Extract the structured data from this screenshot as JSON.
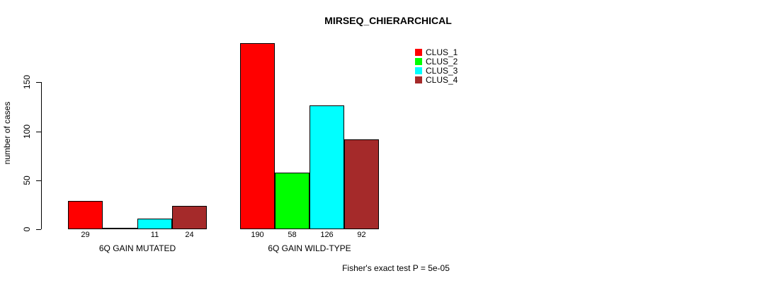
{
  "chart_data": {
    "type": "bar",
    "title": "MIRSEQ_CHIERARCHICAL",
    "xlabel": "",
    "ylabel": "number of cases",
    "ylim": [
      0,
      190
    ],
    "yticks": [
      0,
      50,
      100,
      150
    ],
    "grid": false,
    "legend_position": "top-right-inside",
    "categories": [
      "6Q GAIN MUTATED",
      "6Q GAIN WILD-TYPE"
    ],
    "series": [
      {
        "name": "CLUS_1",
        "color": "#FF0000",
        "values": [
          29,
          190
        ]
      },
      {
        "name": "CLUS_2",
        "color": "#00FF00",
        "values": [
          0,
          58
        ]
      },
      {
        "name": "CLUS_3",
        "color": "#00FFFF",
        "values": [
          11,
          126
        ]
      },
      {
        "name": "CLUS_4",
        "color": "#A52A2A",
        "values": [
          24,
          92
        ]
      }
    ],
    "bar_value_labels": [
      [
        "29",
        "",
        "11",
        "24"
      ],
      [
        "190",
        "58",
        "126",
        "92"
      ]
    ],
    "annotation": "Fisher's exact test P = 5e-05",
    "colors": {
      "axis": "#000000",
      "text": "#000000",
      "background": "#FFFFFF"
    }
  }
}
